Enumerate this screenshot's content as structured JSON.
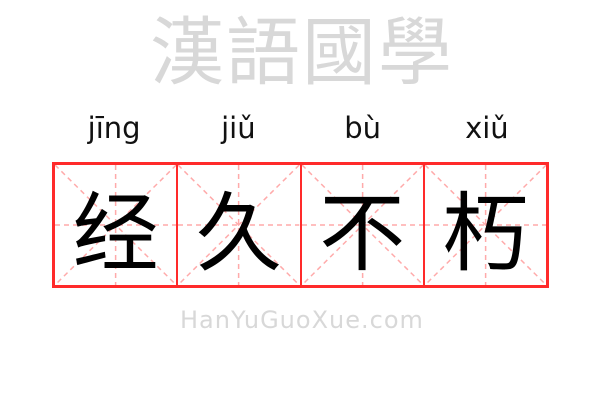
{
  "entries": [
    {
      "pinyin": "jīng",
      "hanzi": "经"
    },
    {
      "pinyin": "jiǔ",
      "hanzi": "久"
    },
    {
      "pinyin": "bù",
      "hanzi": "不"
    },
    {
      "pinyin": "xiǔ",
      "hanzi": "朽"
    }
  ],
  "watermark": {
    "cn": "漢語國學",
    "en": "HanYuGuoXue.com"
  },
  "colors": {
    "border": "#ff2a2a",
    "guide": "#ffaaaa"
  }
}
